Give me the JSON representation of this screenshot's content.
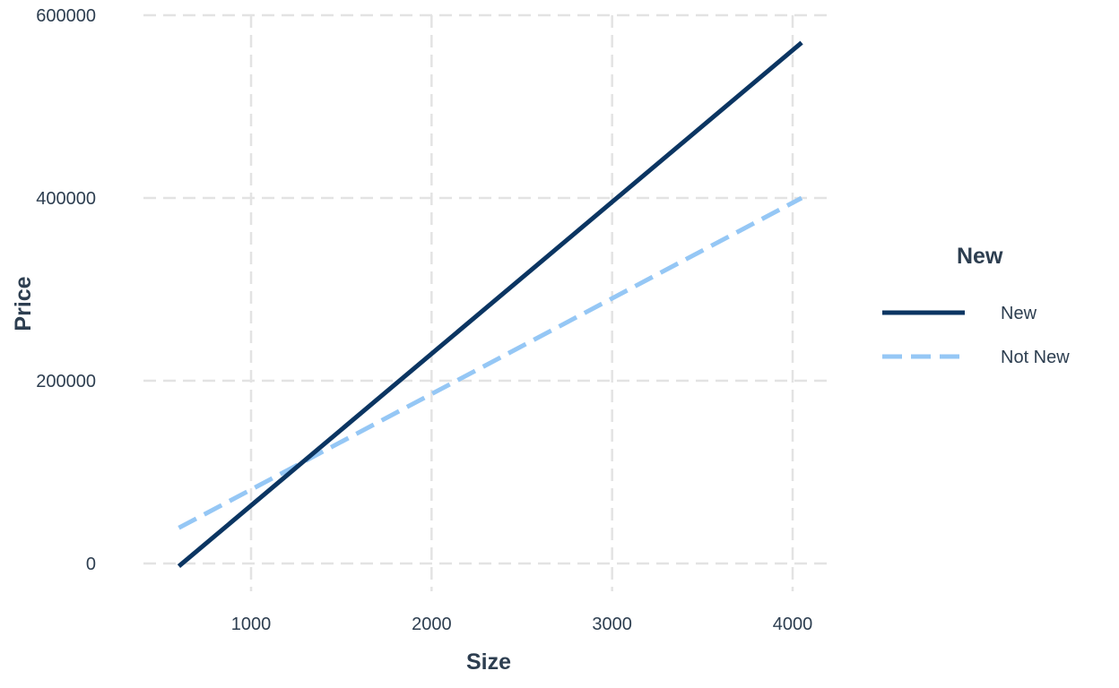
{
  "chart_data": {
    "type": "line",
    "xlabel": "Size",
    "ylabel": "Price",
    "xlim": [
      400,
      4200
    ],
    "ylim": [
      -30000,
      600000
    ],
    "xticks": [
      1000,
      2000,
      3000,
      4000
    ],
    "yticks": [
      0,
      200000,
      400000,
      600000
    ],
    "grid": true,
    "legend": {
      "title": "New",
      "placement": "right"
    },
    "series": [
      {
        "name": "New",
        "color": "#0b3562",
        "style": "solid",
        "x": [
          600,
          4050
        ],
        "y": [
          -3000,
          570000
        ]
      },
      {
        "name": "Not New",
        "color": "#95c7f5",
        "style": "dashed",
        "x": [
          600,
          4050
        ],
        "y": [
          39000,
          400000
        ]
      }
    ]
  }
}
